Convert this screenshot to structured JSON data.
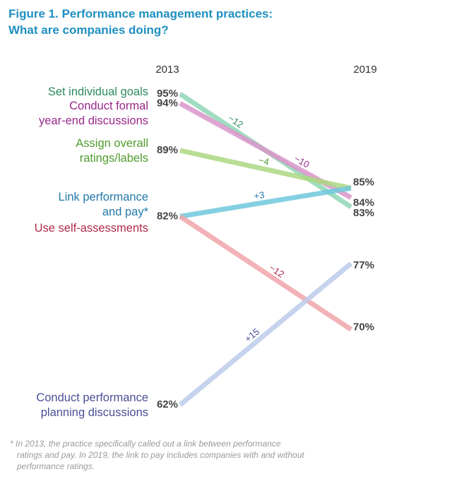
{
  "chart_data": {
    "type": "slope",
    "title": "Figure 1. Performance management practices:\nWhat are companies doing?",
    "categories": [
      "2013",
      "2019"
    ],
    "ylim": [
      62,
      95
    ],
    "series": [
      {
        "name": "Set individual goals",
        "color": "#8fd6b6",
        "label_color": "#2e8a63",
        "values": [
          95,
          83
        ],
        "value_labels": [
          "95%",
          "83%"
        ],
        "change": "−12"
      },
      {
        "name": "Conduct formal\nyear-end discussions",
        "color": "#d994c9",
        "label_color": "#98288a",
        "values": [
          94,
          84
        ],
        "value_labels": [
          "94%",
          "84%"
        ],
        "change": "−10"
      },
      {
        "name": "Assign overall\nratings/labels",
        "color": "#acd883",
        "label_color": "#4f9b2c",
        "values": [
          89,
          85
        ],
        "value_labels": [
          "89%",
          "85%"
        ],
        "change": "−4"
      },
      {
        "name": "Link performance\nand pay*",
        "color": "#6fc8dd",
        "label_color": "#2379a8",
        "values": [
          82,
          85
        ],
        "value_labels": [
          "82%",
          null
        ],
        "change": "+3"
      },
      {
        "name": "Use self-assessments",
        "color": "#f0a4ab",
        "label_color": "#b02a4c",
        "values": [
          82,
          70
        ],
        "value_labels": [
          null,
          "70%"
        ],
        "change": "−12"
      },
      {
        "name": "Conduct performance\nplanning discussions",
        "color": "#bccbea",
        "label_color": "#4a4f96",
        "values": [
          62,
          77
        ],
        "value_labels": [
          "62%",
          "77%"
        ],
        "change": "+15"
      }
    ],
    "footnote": "* In 2013, the practice specifically called out a link between performance\n   ratings and pay. In 2019, the link to pay includes companies with and without\n   performance ratings."
  }
}
